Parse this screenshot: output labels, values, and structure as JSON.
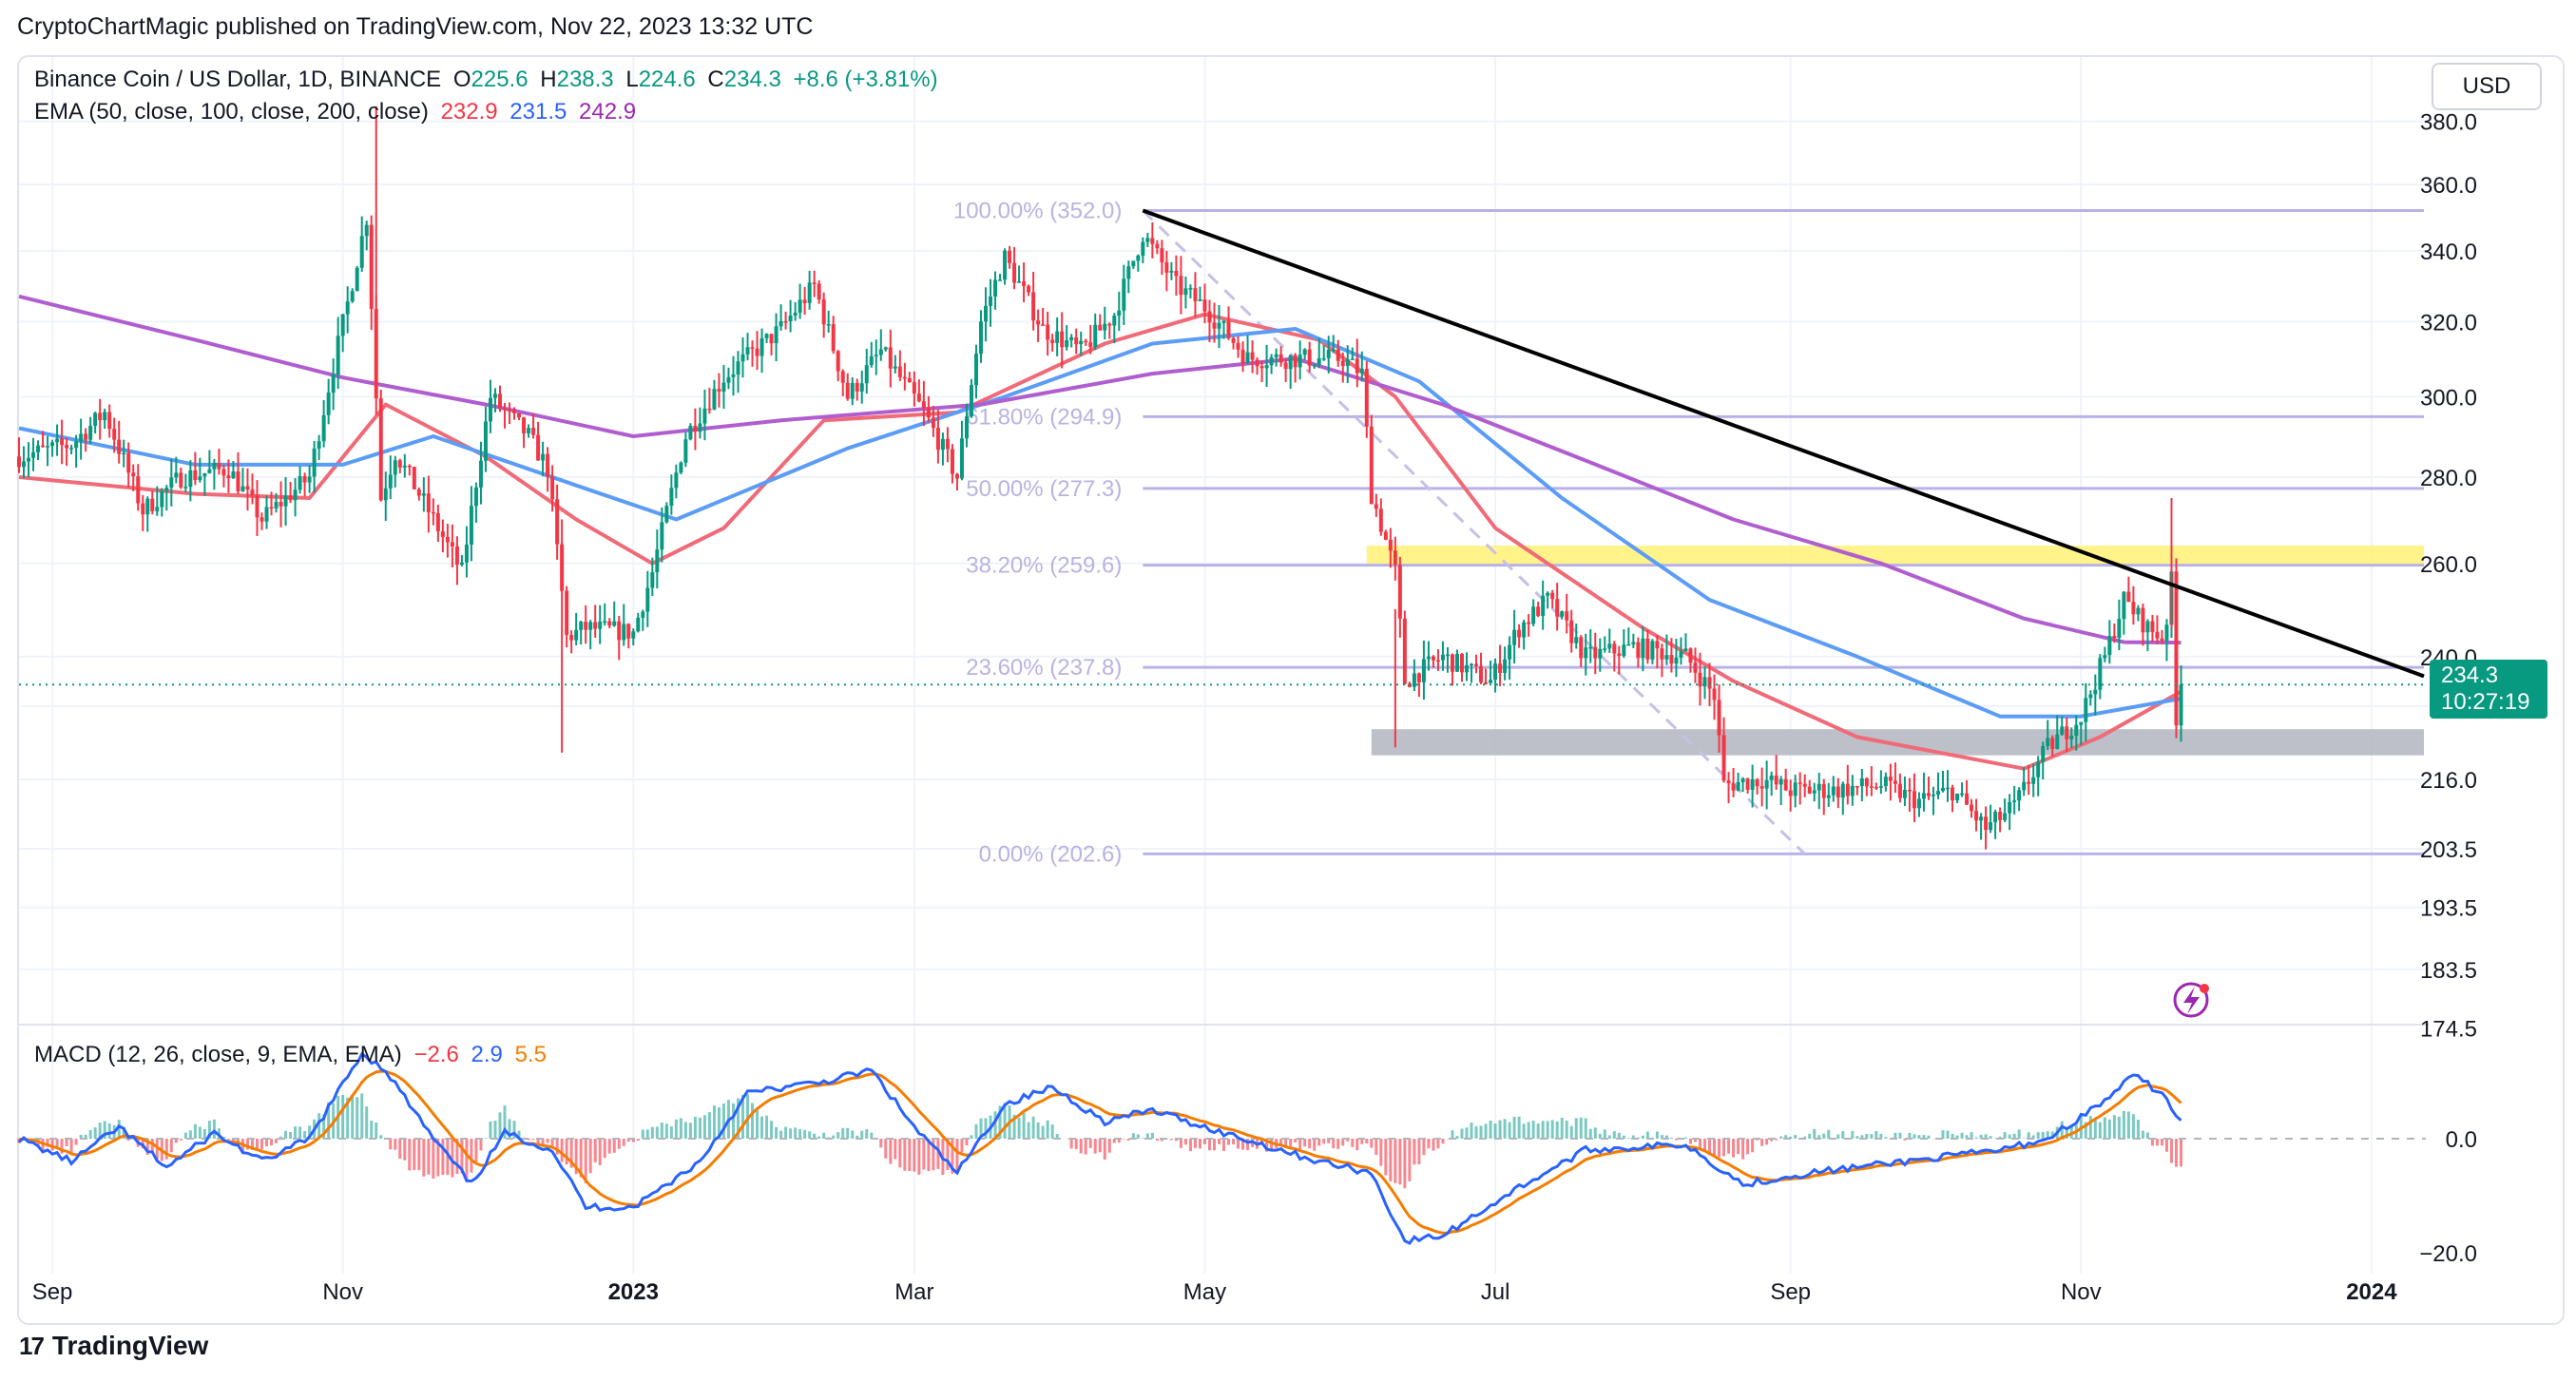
{
  "header": {
    "published": "CryptoChartMagic published on TradingView.com, Nov 22, 2023 13:32 UTC"
  },
  "legend": {
    "symbol": "Binance Coin / US Dollar, 1D, BINANCE",
    "o_label": "O",
    "o": "225.6",
    "h_label": "H",
    "h": "238.3",
    "l_label": "L",
    "l": "224.6",
    "c_label": "C",
    "c": "234.3",
    "change": "+8.6 (+3.81%)",
    "ema_label": "EMA (50, close, 100, close, 200, close)",
    "ema50": "232.9",
    "ema100": "231.5",
    "ema200": "242.9"
  },
  "currency_button": "USD",
  "price_box": {
    "price": "234.3",
    "countdown": "10:27:19"
  },
  "macd_legend": {
    "label": "MACD (12, 26, close, 9, EMA, EMA)",
    "hist": "−2.6",
    "macd": "2.9",
    "signal": "5.5"
  },
  "footer": {
    "brand": "TradingView",
    "logo": "17"
  },
  "colors": {
    "up": "#089981",
    "down": "#f23645",
    "ema50": "#f06a77",
    "ema100": "#5b9cf6",
    "ema200": "#b05ecf",
    "fib": "#b9b2e6",
    "macd": "#2962ff",
    "signal": "#f57c00",
    "resistance": "#fff176",
    "support": "#b2b5be",
    "trendline": "#000000"
  },
  "chart_data": [
    {
      "type": "candlestick",
      "title": "Binance Coin / US Dollar, 1D, BINANCE",
      "y_scale": "log",
      "ylim": [
        174.5,
        380.0
      ],
      "y_ticks": [
        "380.0",
        "360.0",
        "340.0",
        "320.0",
        "300.0",
        "280.0",
        "260.0",
        "240.0",
        "216.0",
        "203.5",
        "193.5",
        "183.5",
        "174.5"
      ],
      "x_range": [
        "2022-08-25",
        "2024-01-12"
      ],
      "x_ticks": [
        {
          "date": "2022-09-01",
          "label": "Sep",
          "bold": false
        },
        {
          "date": "2022-11-01",
          "label": "Nov",
          "bold": false
        },
        {
          "date": "2023-01-01",
          "label": "2023",
          "bold": true
        },
        {
          "date": "2023-03-01",
          "label": "Mar",
          "bold": false
        },
        {
          "date": "2023-05-01",
          "label": "May",
          "bold": false
        },
        {
          "date": "2023-07-01",
          "label": "Jul",
          "bold": false
        },
        {
          "date": "2023-09-01",
          "label": "Sep",
          "bold": false
        },
        {
          "date": "2023-11-01",
          "label": "Nov",
          "bold": false
        },
        {
          "date": "2024-01-01",
          "label": "2024",
          "bold": true
        }
      ],
      "last_price": 234.3,
      "price_anchors": [
        [
          "2022-08-25",
          285
        ],
        [
          "2022-09-05",
          288
        ],
        [
          "2022-09-12",
          296
        ],
        [
          "2022-09-20",
          272
        ],
        [
          "2022-09-28",
          280
        ],
        [
          "2022-10-08",
          282
        ],
        [
          "2022-10-15",
          270
        ],
        [
          "2022-10-25",
          280
        ],
        [
          "2022-11-02",
          325
        ],
        [
          "2022-11-06",
          350
        ],
        [
          "2022-11-09",
          275
        ],
        [
          "2022-11-12",
          286
        ],
        [
          "2022-11-20",
          270
        ],
        [
          "2022-11-26",
          258
        ],
        [
          "2022-12-02",
          300
        ],
        [
          "2022-12-10",
          290
        ],
        [
          "2022-12-14",
          282
        ],
        [
          "2022-12-18",
          244
        ],
        [
          "2022-12-22",
          246
        ],
        [
          "2023-01-01",
          245
        ],
        [
          "2023-01-05",
          258
        ],
        [
          "2023-01-12",
          290
        ],
        [
          "2023-01-20",
          305
        ],
        [
          "2023-02-01",
          318
        ],
        [
          "2023-02-08",
          330
        ],
        [
          "2023-02-15",
          300
        ],
        [
          "2023-02-22",
          312
        ],
        [
          "2023-03-03",
          296
        ],
        [
          "2023-03-10",
          280
        ],
        [
          "2023-03-15",
          320
        ],
        [
          "2023-03-20",
          338
        ],
        [
          "2023-03-28",
          318
        ],
        [
          "2023-04-05",
          312
        ],
        [
          "2023-04-12",
          322
        ],
        [
          "2023-04-18",
          345
        ],
        [
          "2023-04-25",
          330
        ],
        [
          "2023-05-01",
          324
        ],
        [
          "2023-05-10",
          310
        ],
        [
          "2023-05-20",
          310
        ],
        [
          "2023-05-30",
          310
        ],
        [
          "2023-06-03",
          306
        ],
        [
          "2023-06-05",
          276
        ],
        [
          "2023-06-10",
          258
        ],
        [
          "2023-06-12",
          235
        ],
        [
          "2023-06-20",
          240
        ],
        [
          "2023-06-30",
          235
        ],
        [
          "2023-07-06",
          246
        ],
        [
          "2023-07-12",
          252
        ],
        [
          "2023-07-20",
          240
        ],
        [
          "2023-07-30",
          242
        ],
        [
          "2023-08-10",
          240
        ],
        [
          "2023-08-16",
          232
        ],
        [
          "2023-08-18",
          215
        ],
        [
          "2023-08-26",
          216
        ],
        [
          "2023-09-01",
          214
        ],
        [
          "2023-09-10",
          214
        ],
        [
          "2023-09-20",
          215
        ],
        [
          "2023-09-28",
          212
        ],
        [
          "2023-10-05",
          214
        ],
        [
          "2023-10-12",
          207
        ],
        [
          "2023-10-18",
          211
        ],
        [
          "2023-10-25",
          222
        ],
        [
          "2023-11-01",
          228
        ],
        [
          "2023-11-06",
          240
        ],
        [
          "2023-11-10",
          252
        ],
        [
          "2023-11-15",
          246
        ],
        [
          "2023-11-18",
          244
        ],
        [
          "2023-11-19",
          248
        ],
        [
          "2023-11-20",
          256
        ],
        [
          "2023-11-21",
          226
        ],
        [
          "2023-11-22",
          234.3
        ]
      ],
      "ema_lines": [
        {
          "name": "EMA 50",
          "color": "#f06a77",
          "points": [
            [
              "2022-08-25",
              280
            ],
            [
              "2022-10-01",
              276
            ],
            [
              "2022-10-25",
              275
            ],
            [
              "2022-11-10",
              298
            ],
            [
              "2022-12-01",
              285
            ],
            [
              "2022-12-20",
              270
            ],
            [
              "2023-01-05",
              260
            ],
            [
              "2023-01-20",
              268
            ],
            [
              "2023-02-10",
              294
            ],
            [
              "2023-03-10",
              296
            ],
            [
              "2023-04-10",
              314
            ],
            [
              "2023-05-01",
              322
            ],
            [
              "2023-05-25",
              315
            ],
            [
              "2023-06-10",
              300
            ],
            [
              "2023-07-01",
              268
            ],
            [
              "2023-08-01",
              246
            ],
            [
              "2023-08-20",
              235
            ],
            [
              "2023-09-15",
              224
            ],
            [
              "2023-10-20",
              218
            ],
            [
              "2023-11-05",
              224
            ],
            [
              "2023-11-22",
              232.9
            ]
          ]
        },
        {
          "name": "EMA 100",
          "color": "#5b9cf6",
          "points": [
            [
              "2022-08-25",
              292
            ],
            [
              "2022-10-01",
              283
            ],
            [
              "2022-11-01",
              283
            ],
            [
              "2022-11-20",
              290
            ],
            [
              "2022-12-20",
              278
            ],
            [
              "2023-01-10",
              270
            ],
            [
              "2023-02-15",
              287
            ],
            [
              "2023-03-20",
              300
            ],
            [
              "2023-04-20",
              314
            ],
            [
              "2023-05-20",
              318
            ],
            [
              "2023-06-15",
              304
            ],
            [
              "2023-07-15",
              275
            ],
            [
              "2023-08-15",
              252
            ],
            [
              "2023-09-15",
              240
            ],
            [
              "2023-10-15",
              228
            ],
            [
              "2023-11-01",
              228
            ],
            [
              "2023-11-22",
              231.5
            ]
          ]
        },
        {
          "name": "EMA 200",
          "color": "#b05ecf",
          "points": [
            [
              "2022-08-25",
              327
            ],
            [
              "2022-10-01",
              315
            ],
            [
              "2022-11-01",
              305
            ],
            [
              "2022-12-01",
              298
            ],
            [
              "2023-01-01",
              290
            ],
            [
              "2023-02-01",
              294
            ],
            [
              "2023-03-15",
              298
            ],
            [
              "2023-04-20",
              306
            ],
            [
              "2023-05-20",
              310
            ],
            [
              "2023-06-20",
              298
            ],
            [
              "2023-07-20",
              284
            ],
            [
              "2023-08-20",
              270
            ],
            [
              "2023-09-20",
              260
            ],
            [
              "2023-10-20",
              248
            ],
            [
              "2023-11-10",
              243
            ],
            [
              "2023-11-22",
              242.9
            ]
          ]
        }
      ],
      "fib_levels": [
        {
          "label": "100.00% (352.0)",
          "value": 352.0
        },
        {
          "label": "61.80% (294.9)",
          "value": 294.9
        },
        {
          "label": "50.00% (277.3)",
          "value": 277.3
        },
        {
          "label": "38.20% (259.6)",
          "value": 259.6
        },
        {
          "label": "23.60% (237.8)",
          "value": 237.8
        },
        {
          "label": "0.00% (202.6)",
          "value": 202.6
        }
      ],
      "fib_x_range": [
        "2023-04-18",
        "2024-01-12"
      ],
      "fib_diagonal": [
        [
          "2023-04-18",
          352.0
        ],
        [
          "2023-09-04",
          202.6
        ]
      ],
      "trendline": [
        [
          "2023-04-18",
          352.0
        ],
        [
          "2024-01-12",
          236.0
        ]
      ],
      "resistance_zone": {
        "from": "2023-06-04",
        "to": "2024-01-12",
        "low": 259.6,
        "high": 264.0
      },
      "support_zone": {
        "from": "2023-06-05",
        "to": "2024-01-12",
        "low": 220.5,
        "high": 225.5
      }
    },
    {
      "type": "macd",
      "title": "MACD (12, 26, close, 9, EMA, EMA)",
      "ylim": [
        -22,
        28
      ],
      "y_ticks": [
        {
          "value": 0,
          "label": "0.0"
        },
        {
          "value": -20,
          "label": "−20.0"
        }
      ],
      "last_histogram": -2.6,
      "last_macd": 2.9,
      "last_signal": 5.5,
      "macd_anchors": [
        [
          "2022-08-25",
          0
        ],
        [
          "2022-09-05",
          -4
        ],
        [
          "2022-09-15",
          2
        ],
        [
          "2022-09-25",
          -5
        ],
        [
          "2022-10-05",
          1
        ],
        [
          "2022-10-15",
          -4
        ],
        [
          "2022-10-25",
          0
        ],
        [
          "2022-11-05",
          15
        ],
        [
          "2022-11-10",
          12
        ],
        [
          "2022-11-20",
          0
        ],
        [
          "2022-11-28",
          -8
        ],
        [
          "2022-12-05",
          1
        ],
        [
          "2022-12-15",
          -2
        ],
        [
          "2022-12-22",
          -12
        ],
        [
          "2023-01-01",
          -12
        ],
        [
          "2023-01-15",
          -4
        ],
        [
          "2023-01-25",
          8
        ],
        [
          "2023-02-10",
          10
        ],
        [
          "2023-02-20",
          12
        ],
        [
          "2023-03-01",
          2
        ],
        [
          "2023-03-10",
          -6
        ],
        [
          "2023-03-20",
          6
        ],
        [
          "2023-03-30",
          9
        ],
        [
          "2023-04-10",
          3
        ],
        [
          "2023-04-20",
          5
        ],
        [
          "2023-05-05",
          1
        ],
        [
          "2023-05-25",
          -4
        ],
        [
          "2023-06-05",
          -6
        ],
        [
          "2023-06-12",
          -18
        ],
        [
          "2023-06-20",
          -17
        ],
        [
          "2023-07-05",
          -9
        ],
        [
          "2023-07-20",
          -2
        ],
        [
          "2023-08-10",
          -1
        ],
        [
          "2023-08-22",
          -8
        ],
        [
          "2023-09-05",
          -6
        ],
        [
          "2023-09-25",
          -4
        ],
        [
          "2023-10-15",
          -2
        ],
        [
          "2023-10-25",
          0
        ],
        [
          "2023-11-05",
          6
        ],
        [
          "2023-11-12",
          11
        ],
        [
          "2023-11-18",
          8
        ],
        [
          "2023-11-22",
          2.9
        ]
      ]
    }
  ]
}
